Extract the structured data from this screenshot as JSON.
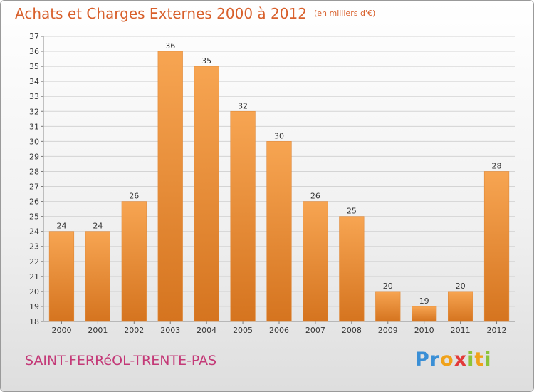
{
  "header": {
    "title": "Achats et Charges Externes 2000 à 2012",
    "unit": "(en milliers d'€)"
  },
  "footer": {
    "commune": "SAINT-FERRéOL-TRENTE-PAS",
    "logo": "Proxiti"
  },
  "colors": {
    "title": "#d8602c",
    "commune": "#c43a78",
    "bar_light": "#f7a552",
    "bar_dark": "#d5741f"
  },
  "chart_data": {
    "type": "bar",
    "categories": [
      "2000",
      "2001",
      "2002",
      "2003",
      "2004",
      "2005",
      "2006",
      "2007",
      "2008",
      "2009",
      "2010",
      "2011",
      "2012"
    ],
    "values": [
      24,
      24,
      26,
      36,
      35,
      32,
      30,
      26,
      25,
      20,
      19,
      20,
      28
    ],
    "ylim": [
      18,
      37
    ],
    "yticks": [
      18,
      19,
      20,
      21,
      22,
      23,
      24,
      25,
      26,
      27,
      28,
      29,
      30,
      31,
      32,
      33,
      34,
      35,
      36,
      37
    ],
    "grid": true,
    "title": "Achats et Charges Externes 2000 à 2012",
    "xlabel": "",
    "ylabel": ""
  }
}
